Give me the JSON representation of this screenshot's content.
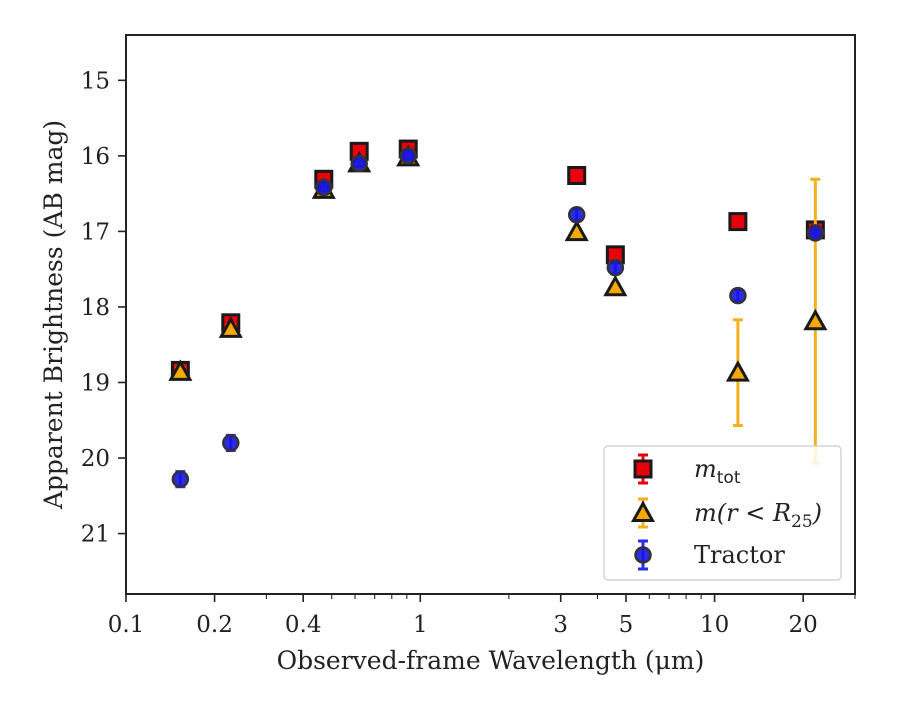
{
  "chart_data": {
    "type": "scatter",
    "title": "",
    "xlabel": "Observed-frame Wavelength (μm)",
    "ylabel": "Apparent Brightness (AB mag)",
    "xscale": "log",
    "xlim": [
      0.1,
      30
    ],
    "ylim": [
      21.8,
      14.4
    ],
    "y_inverted": true,
    "grid": false,
    "legend_position": "lower right",
    "x_ticks": [
      {
        "value": 0.1,
        "label": "0.1"
      },
      {
        "value": 0.2,
        "label": "0.2"
      },
      {
        "value": 0.4,
        "label": "0.4"
      },
      {
        "value": 1,
        "label": "1"
      },
      {
        "value": 3,
        "label": "3"
      },
      {
        "value": 5,
        "label": "5"
      },
      {
        "value": 10,
        "label": "10"
      },
      {
        "value": 20,
        "label": "20"
      }
    ],
    "y_ticks": [
      {
        "value": 15,
        "label": "15"
      },
      {
        "value": 16,
        "label": "16"
      },
      {
        "value": 17,
        "label": "17"
      },
      {
        "value": 18,
        "label": "18"
      },
      {
        "value": 19,
        "label": "19"
      },
      {
        "value": 20,
        "label": "20"
      },
      {
        "value": 21,
        "label": "21"
      }
    ],
    "series": [
      {
        "name": "m_tot",
        "legend_main": "m",
        "legend_sub": "tot",
        "marker": "square",
        "color": "#e8000b",
        "edge": "#1a1a1a",
        "errcolor": "#e8000b",
        "points": [
          {
            "x": 0.153,
            "y": 18.84,
            "err": 0.05
          },
          {
            "x": 0.227,
            "y": 18.21,
            "err": 0.05
          },
          {
            "x": 0.47,
            "y": 16.31,
            "err": 0.03
          },
          {
            "x": 0.62,
            "y": 15.94,
            "err": 0.03
          },
          {
            "x": 0.91,
            "y": 15.91,
            "err": 0.03
          },
          {
            "x": 3.4,
            "y": 16.26,
            "err": 0.03
          },
          {
            "x": 4.6,
            "y": 17.31,
            "err": 0.05
          },
          {
            "x": 12.0,
            "y": 16.87,
            "err": 0.05
          },
          {
            "x": 22.0,
            "y": 16.98,
            "err": 0.1
          }
        ]
      },
      {
        "name": "m(r < R_25)",
        "legend_main": "m(r < R",
        "legend_sub": "25",
        "legend_tail": ")",
        "marker": "triangle",
        "color": "#f5a800",
        "edge": "#1a1a1a",
        "errcolor": "#f5b020",
        "points": [
          {
            "x": 0.153,
            "y": 18.86,
            "err": 0.05
          },
          {
            "x": 0.227,
            "y": 18.29,
            "err": 0.05
          },
          {
            "x": 0.47,
            "y": 16.45,
            "err": 0.03
          },
          {
            "x": 0.62,
            "y": 16.1,
            "err": 0.03
          },
          {
            "x": 0.91,
            "y": 16.02,
            "err": 0.03
          },
          {
            "x": 3.4,
            "y": 17.01,
            "err": 0.04
          },
          {
            "x": 4.6,
            "y": 17.74,
            "err": 0.05
          },
          {
            "x": 12.0,
            "y": 18.87,
            "err": 0.7
          },
          {
            "x": 22.0,
            "y": 18.19,
            "err": 1.88
          }
        ]
      },
      {
        "name": "Tractor",
        "legend_main": "Tractor",
        "marker": "circle",
        "color": "#1515e0",
        "edge": "#333333",
        "errcolor": "#2a2ae8",
        "points": [
          {
            "x": 0.153,
            "y": 20.28,
            "err": 0.1
          },
          {
            "x": 0.227,
            "y": 19.8,
            "err": 0.1
          },
          {
            "x": 0.47,
            "y": 16.42,
            "err": 0.04
          },
          {
            "x": 0.62,
            "y": 16.1,
            "err": 0.04
          },
          {
            "x": 0.91,
            "y": 16.0,
            "err": 0.04
          },
          {
            "x": 3.4,
            "y": 16.78,
            "err": 0.08
          },
          {
            "x": 4.6,
            "y": 17.48,
            "err": 0.08
          },
          {
            "x": 12.0,
            "y": 17.85,
            "err": 0.08
          },
          {
            "x": 22.0,
            "y": 17.02,
            "err": 0.08
          }
        ]
      }
    ]
  }
}
